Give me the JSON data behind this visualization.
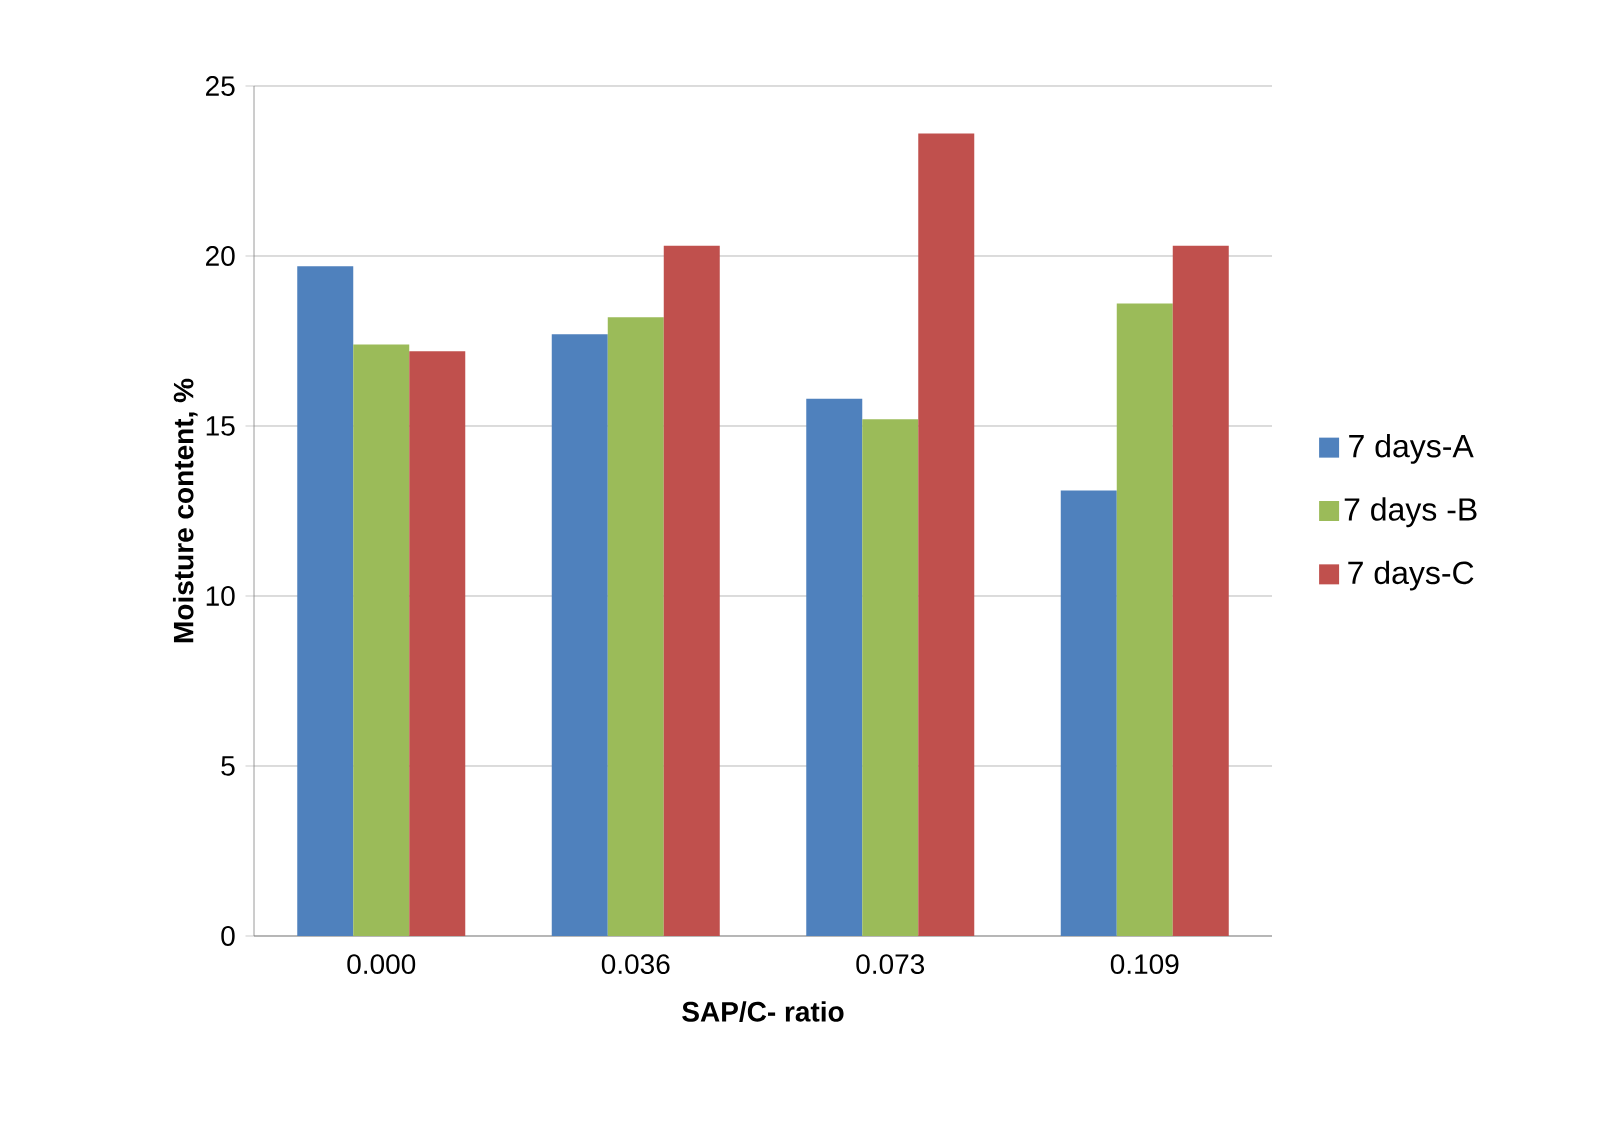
{
  "chart_data": {
    "type": "bar",
    "xlabel": "SAP/C- ratio",
    "ylabel": "Moisture content, %",
    "categories": [
      "0.000",
      "0.036",
      "0.073",
      "0.109"
    ],
    "series": [
      {
        "name": "7 days-A",
        "color": "#4f81bd",
        "values": [
          19.7,
          17.7,
          15.8,
          13.1
        ]
      },
      {
        "name": "7 days -B",
        "color": "#9bbb59",
        "values": [
          17.4,
          18.2,
          15.2,
          18.6
        ]
      },
      {
        "name": "7 days-C",
        "color": "#c0504d",
        "values": [
          17.2,
          20.3,
          23.6,
          20.3
        ]
      }
    ],
    "ylim": [
      0,
      25
    ],
    "yticks": [
      0,
      5,
      10,
      15,
      20,
      25
    ],
    "grid": "y",
    "legend": "right"
  }
}
